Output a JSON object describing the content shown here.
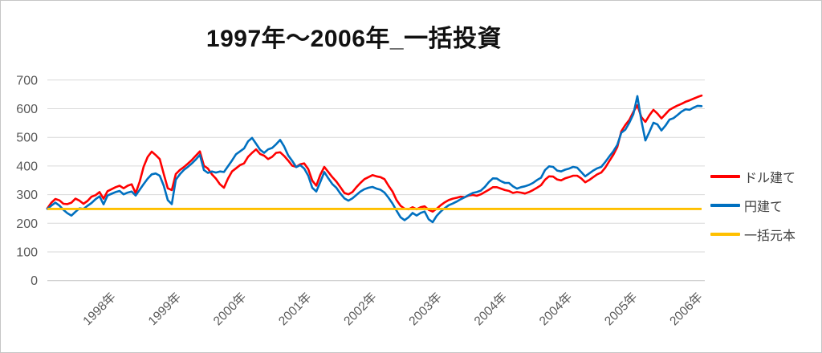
{
  "title": "1997年〜2006年_一括投資",
  "colors": {
    "dollar_series": "#FF0000",
    "yen_series": "#0070C0",
    "principal_line": "#FFC000",
    "grid": "#D9D9D9",
    "axis_line": "#BFBFBF",
    "axis_labels": "#595959",
    "legend_text": "#3F3F3F",
    "title_text": "#111111"
  },
  "chart_data": {
    "type": "line",
    "title": "1997年〜2006年_一括投資",
    "xlabel": "",
    "ylabel": "",
    "ylim": [
      0,
      700
    ],
    "y_ticks": [
      0,
      100,
      200,
      300,
      400,
      500,
      600,
      700
    ],
    "grid": true,
    "legend_position": "right",
    "x_range_note": "daily values sampled evenly from start 1997 to end 2006",
    "x_tick_labels": [
      "1998年",
      "1999年",
      "2000年",
      "2001年",
      "2002年",
      "2003年",
      "2004年",
      "2004年",
      "2005年",
      "2006年"
    ],
    "principal": 250,
    "series": [
      {
        "name": "ドル建て",
        "color": "#FF0000",
        "values": [
          252,
          272,
          285,
          280,
          268,
          267,
          272,
          286,
          279,
          268,
          278,
          293,
          298,
          309,
          286,
          312,
          319,
          326,
          331,
          322,
          331,
          336,
          305,
          345,
          398,
          432,
          450,
          438,
          424,
          372,
          322,
          316,
          372,
          386,
          396,
          408,
          421,
          436,
          451,
          401,
          391,
          371,
          356,
          336,
          324,
          356,
          381,
          392,
          403,
          409,
          432,
          446,
          458,
          442,
          436,
          424,
          432,
          446,
          448,
          435,
          419,
          401,
          397,
          406,
          409,
          389,
          349,
          331,
          369,
          397,
          379,
          361,
          346,
          326,
          306,
          301,
          309,
          326,
          341,
          354,
          361,
          368,
          364,
          361,
          354,
          331,
          311,
          281,
          261,
          251,
          249,
          256,
          249,
          256,
          259,
          247,
          241,
          251,
          263,
          273,
          281,
          286,
          289,
          293,
          291,
          297,
          299,
          296,
          301,
          309,
          317,
          326,
          326,
          321,
          316,
          313,
          306,
          309,
          307,
          304,
          309,
          316,
          324,
          333,
          352,
          364,
          363,
          353,
          350,
          357,
          361,
          366,
          366,
          357,
          343,
          351,
          361,
          371,
          377,
          394,
          417,
          439,
          466,
          521,
          543,
          561,
          589,
          612,
          571,
          554,
          577,
          596,
          583,
          566,
          581,
          596,
          604,
          611,
          617,
          624,
          629,
          635,
          641,
          646
        ]
      },
      {
        "name": "円建て",
        "color": "#0070C0",
        "values": [
          250,
          262,
          272,
          262,
          247,
          235,
          227,
          240,
          252,
          250,
          261,
          271,
          284,
          294,
          266,
          297,
          303,
          309,
          313,
          301,
          307,
          311,
          297,
          317,
          337,
          356,
          371,
          374,
          366,
          331,
          281,
          267,
          352,
          371,
          386,
          397,
          409,
          423,
          439,
          386,
          376,
          381,
          377,
          381,
          379,
          399,
          419,
          441,
          451,
          461,
          486,
          498,
          478,
          457,
          446,
          458,
          463,
          476,
          491,
          468,
          437,
          418,
          396,
          403,
          391,
          366,
          324,
          311,
          344,
          379,
          357,
          337,
          324,
          304,
          287,
          279,
          287,
          299,
          311,
          319,
          324,
          327,
          321,
          317,
          307,
          289,
          269,
          244,
          221,
          211,
          221,
          236,
          227,
          236,
          241,
          214,
          204,
          226,
          241,
          253,
          263,
          269,
          276,
          284,
          291,
          299,
          306,
          309,
          314,
          327,
          344,
          357,
          356,
          347,
          341,
          341,
          329,
          321,
          326,
          329,
          334,
          341,
          351,
          359,
          386,
          399,
          397,
          384,
          381,
          387,
          391,
          397,
          394,
          379,
          364,
          374,
          384,
          392,
          397,
          414,
          433,
          451,
          474,
          516,
          527,
          551,
          581,
          644,
          558,
          489,
          519,
          551,
          545,
          524,
          541,
          562,
          567,
          578,
          590,
          598,
          596,
          604,
          610,
          609
        ]
      },
      {
        "name": "一括元本",
        "color": "#FFC000",
        "constant_value": 250
      }
    ]
  }
}
